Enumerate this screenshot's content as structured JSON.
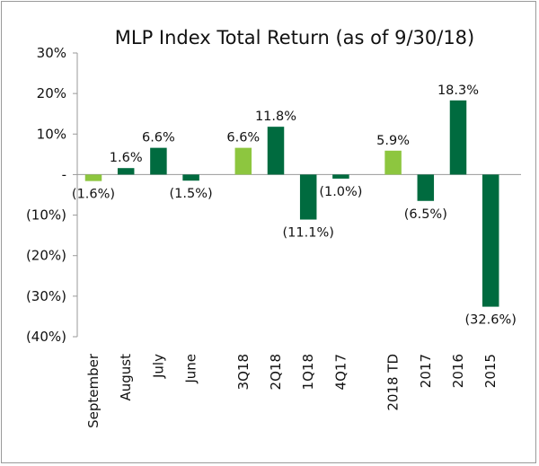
{
  "chart_data": {
    "type": "bar",
    "title": "MLP Index Total Return (as of 9/30/18)",
    "xlabel": "",
    "ylabel": "",
    "ylim": [
      -40,
      30
    ],
    "yticks": [
      30,
      20,
      10,
      0,
      -10,
      -20,
      -30,
      -40
    ],
    "ytick_labels": [
      "30%",
      "20%",
      "10%",
      "-",
      "(10%)",
      "(20%)",
      "(30%)",
      "(40%)"
    ],
    "grid": false,
    "legend": "none",
    "colors": {
      "highlight": "#8dc63f",
      "standard": "#006b3f"
    },
    "categories": [
      "September",
      "August",
      "July",
      "June",
      "3Q18",
      "2Q18",
      "1Q18",
      "4Q17",
      "2018 TD",
      "2017",
      "2016",
      "2015"
    ],
    "group_after": [
      3,
      7
    ],
    "values": [
      -1.6,
      1.6,
      6.6,
      -1.5,
      6.6,
      11.8,
      -11.1,
      -1.0,
      5.9,
      -6.5,
      18.3,
      -32.6
    ],
    "value_labels": [
      "(1.6%)",
      "1.6%",
      "6.6%",
      "(1.5%)",
      "6.6%",
      "11.8%",
      "(11.1%)",
      "(1.0%)",
      "5.9%",
      "(6.5%)",
      "18.3%",
      "(32.6%)"
    ],
    "highlight": [
      true,
      false,
      false,
      false,
      true,
      false,
      false,
      false,
      true,
      false,
      false,
      false
    ]
  }
}
